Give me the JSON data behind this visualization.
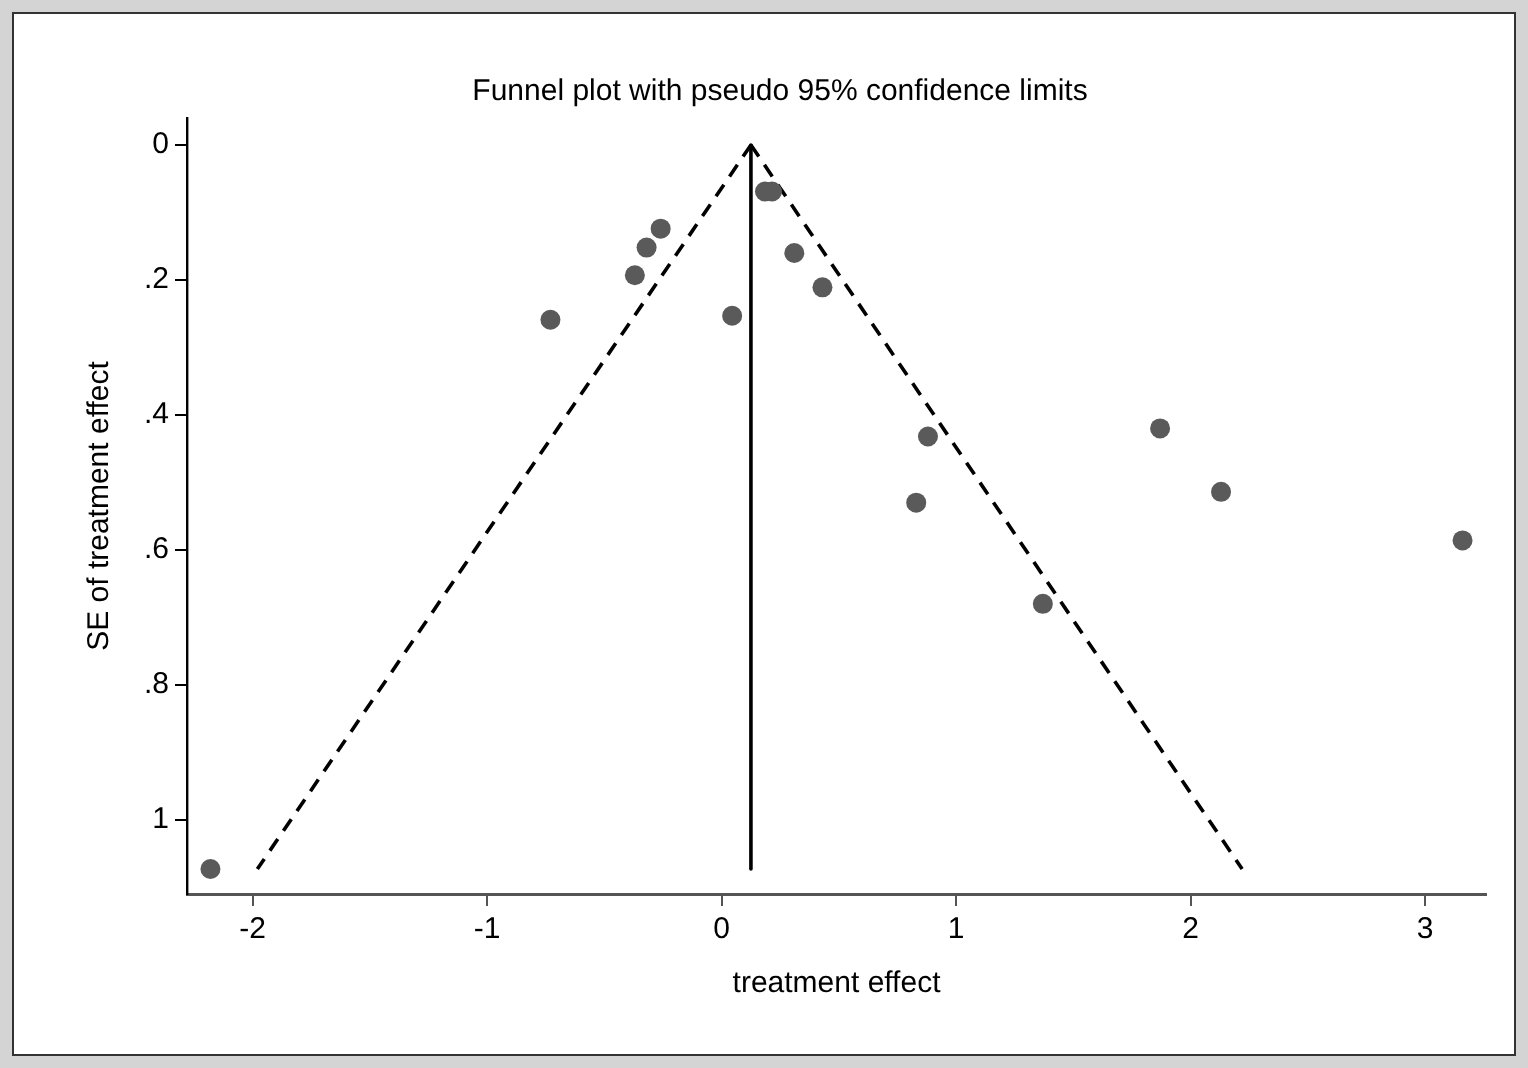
{
  "chart_data": {
    "type": "scatter",
    "title": "Funnel plot with pseudo 95% confidence limits",
    "xlabel": "treatment effect",
    "ylabel": "SE of treatment effect",
    "xlim": [
      -2.28,
      3.26
    ],
    "xticks": [
      -2,
      -1,
      0,
      1,
      2,
      3
    ],
    "ylim": [
      1.11,
      -0.04
    ],
    "yticks": [
      {
        "value": 0,
        "label": "0"
      },
      {
        "value": 0.2,
        "label": ".2"
      },
      {
        "value": 0.4,
        "label": ".4"
      },
      {
        "value": 0.6,
        "label": ".6"
      },
      {
        "value": 0.8,
        "label": ".8"
      },
      {
        "value": 1,
        "label": "1"
      }
    ],
    "grid": false,
    "legend": false,
    "series": [
      {
        "type": "scatter",
        "color": "#5a5a5a",
        "marker": "circle",
        "x": [
          0.185,
          0.215,
          -0.26,
          -0.32,
          -0.37,
          -0.73,
          0.045,
          0.31,
          0.43,
          0.88,
          0.83,
          1.87,
          2.13,
          3.16,
          1.37,
          -2.18
        ],
        "values": [
          0.069,
          0.069,
          0.124,
          0.152,
          0.193,
          0.259,
          0.253,
          0.16,
          0.211,
          0.432,
          0.53,
          0.42,
          0.514,
          0.586,
          0.68,
          1.073
        ]
      },
      {
        "type": "line",
        "color": "#000000",
        "marker": "none",
        "line_style": "solid",
        "x": [
          0.125,
          0.125
        ],
        "values": [
          0,
          1.073
        ]
      },
      {
        "type": "line",
        "color": "#000000",
        "marker": "none",
        "line_style": "dashed",
        "x": [
          0.125,
          -1.98
        ],
        "values": [
          0,
          1.073
        ]
      },
      {
        "type": "line",
        "color": "#000000",
        "marker": "none",
        "line_style": "dashed",
        "x": [
          0.125,
          2.22
        ],
        "values": [
          0,
          1.073
        ]
      }
    ]
  }
}
